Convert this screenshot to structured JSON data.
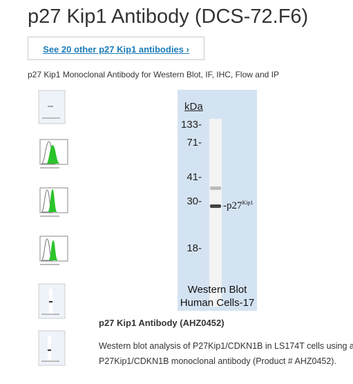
{
  "header": {
    "title": "p27 Kip1 Antibody (DCS-72.F6)",
    "link": "See 20 other p27 Kip1 antibodies ›",
    "subtitle": "p27 Kip1 Monoclonal Antibody for Western Blot, IF, IHC, Flow and IP"
  },
  "figure": {
    "unit": "kDa",
    "markers": [
      "133-",
      "71-",
      "41-",
      "30-",
      "18-"
    ],
    "band_label": "-p27",
    "band_label_sup": "Kip1",
    "caption": [
      "Western Blot",
      "Human Cells-17"
    ]
  },
  "description": {
    "title": "p27 Kip1 Antibody (AHZ0452)",
    "text": "Western blot analysis of P27Kip1/CDKN1B in LS174T cells using a P27Kip1/CDKN1B monoclonal antibody (Product # AHZ0452)."
  }
}
